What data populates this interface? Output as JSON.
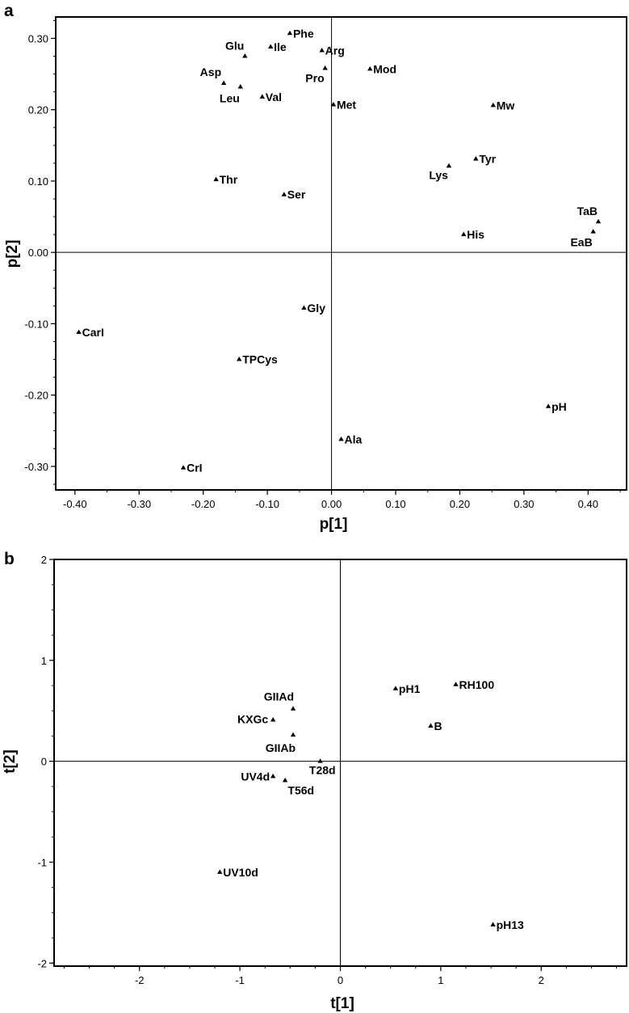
{
  "chart_data": [
    {
      "type": "scatter",
      "panel": "a",
      "xlabel": "p[1]",
      "ylabel": "p[2]",
      "xlim": [
        -0.43,
        0.46
      ],
      "ylim": [
        -0.333,
        0.33
      ],
      "x_ticks": [
        -0.4,
        -0.3,
        -0.2,
        -0.1,
        0.0,
        0.1,
        0.2,
        0.3,
        0.4
      ],
      "x_tick_labels": [
        "-0.40",
        "-0.30",
        "-0.20",
        "-0.10",
        "0.00",
        "0.10",
        "0.20",
        "0.30",
        "0.40"
      ],
      "y_ticks": [
        -0.3,
        -0.2,
        -0.1,
        0.0,
        0.1,
        0.2,
        0.3
      ],
      "y_tick_labels": [
        "-0.30",
        "-0.20",
        "-0.10",
        "0.00",
        "0.10",
        "0.20",
        "0.30"
      ],
      "grid": false,
      "points": [
        {
          "label": "Phe",
          "x": -0.065,
          "y": 0.307
        },
        {
          "label": "Glu",
          "x": -0.135,
          "y": 0.275
        },
        {
          "label": "Ile",
          "x": -0.095,
          "y": 0.288
        },
        {
          "label": "Arg",
          "x": -0.015,
          "y": 0.283
        },
        {
          "label": "Pro",
          "x": -0.01,
          "y": 0.258
        },
        {
          "label": "Mod",
          "x": 0.06,
          "y": 0.257
        },
        {
          "label": "Asp",
          "x": -0.168,
          "y": 0.237
        },
        {
          "label": "Leu",
          "x": -0.142,
          "y": 0.232
        },
        {
          "label": "Val",
          "x": -0.108,
          "y": 0.218
        },
        {
          "label": "Met",
          "x": 0.003,
          "y": 0.207
        },
        {
          "label": "Mw",
          "x": 0.252,
          "y": 0.206
        },
        {
          "label": "Tyr",
          "x": 0.225,
          "y": 0.131
        },
        {
          "label": "Lys",
          "x": 0.183,
          "y": 0.121
        },
        {
          "label": "Thr",
          "x": -0.18,
          "y": 0.102
        },
        {
          "label": "Ser",
          "x": -0.074,
          "y": 0.081
        },
        {
          "label": "TaB",
          "x": 0.416,
          "y": 0.043
        },
        {
          "label": "EaB",
          "x": 0.408,
          "y": 0.029
        },
        {
          "label": "His",
          "x": 0.206,
          "y": 0.025
        },
        {
          "label": "Gly",
          "x": -0.043,
          "y": -0.078
        },
        {
          "label": "CarI",
          "x": -0.394,
          "y": -0.112
        },
        {
          "label": "TPCys",
          "x": -0.144,
          "y": -0.15
        },
        {
          "label": "pH",
          "x": 0.338,
          "y": -0.216
        },
        {
          "label": "Ala",
          "x": 0.015,
          "y": -0.262
        },
        {
          "label": "CrI",
          "x": -0.231,
          "y": -0.302
        }
      ]
    },
    {
      "type": "scatter",
      "panel": "b",
      "xlabel": "t[1]",
      "ylabel": "t[2]",
      "xlim": [
        -2.85,
        2.85
      ],
      "ylim": [
        -2.03,
        2.0
      ],
      "x_ticks": [
        -2,
        -1,
        0,
        1,
        2
      ],
      "x_tick_labels": [
        "-2",
        "-1",
        "0",
        "1",
        "2"
      ],
      "y_ticks": [
        -2,
        -1,
        0,
        1,
        2
      ],
      "y_tick_labels": [
        "-2",
        "-1",
        "0",
        "1",
        "2"
      ],
      "grid": false,
      "points": [
        {
          "label": "RH100",
          "x": 1.15,
          "y": 0.76
        },
        {
          "label": "pH1",
          "x": 0.55,
          "y": 0.72
        },
        {
          "label": "GIIAd",
          "x": -0.47,
          "y": 0.52
        },
        {
          "label": "KXGc",
          "x": -0.67,
          "y": 0.41
        },
        {
          "label": "B",
          "x": 0.9,
          "y": 0.35
        },
        {
          "label": "GIIAb",
          "x": -0.47,
          "y": 0.26
        },
        {
          "label": "T28d",
          "x": -0.2,
          "y": 0.0
        },
        {
          "label": "UV4d",
          "x": -0.67,
          "y": -0.15
        },
        {
          "label": "T56d",
          "x": -0.55,
          "y": -0.19
        },
        {
          "label": "UV10d",
          "x": -1.2,
          "y": -1.1
        },
        {
          "label": "pH13",
          "x": 1.52,
          "y": -1.62
        }
      ]
    }
  ]
}
